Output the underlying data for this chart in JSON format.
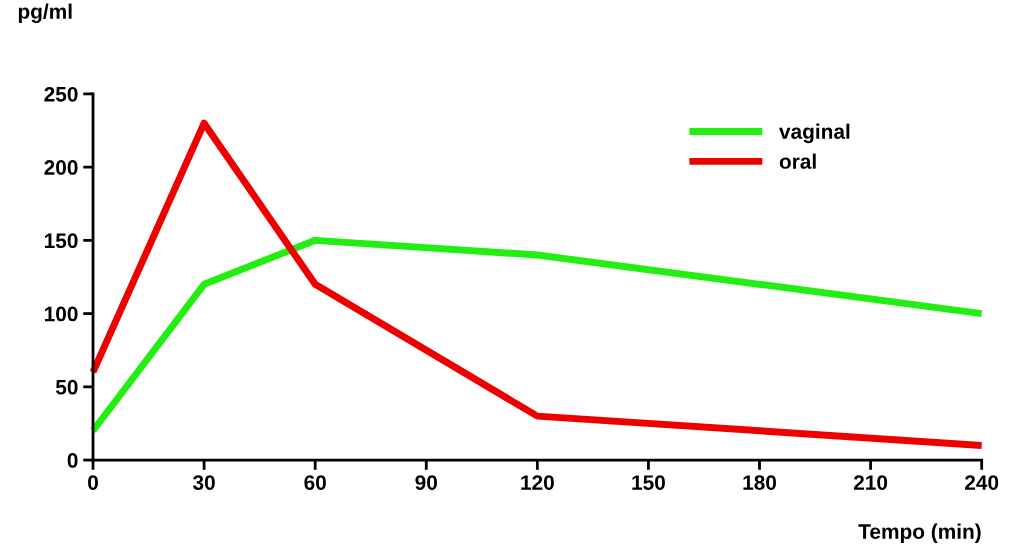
{
  "chart_data": {
    "type": "line",
    "xlabel": "Tempo (min)",
    "ylabel": "pg/ml",
    "x": [
      0,
      30,
      60,
      120,
      240
    ],
    "series": [
      {
        "name": "vaginal",
        "color": "#22ee11",
        "values": [
          20,
          120,
          150,
          140,
          100
        ]
      },
      {
        "name": "oral",
        "color": "#ee0000",
        "values": [
          60,
          230,
          120,
          30,
          10
        ]
      }
    ],
    "xlim": [
      0,
      240
    ],
    "xticks": [
      0,
      30,
      60,
      90,
      120,
      150,
      180,
      210,
      240
    ],
    "ylim": [
      0,
      250
    ],
    "yticks": [
      0,
      50,
      100,
      150,
      200,
      250
    ],
    "grid": false,
    "legend": "top right",
    "marker": "none",
    "line_style": "solid"
  }
}
